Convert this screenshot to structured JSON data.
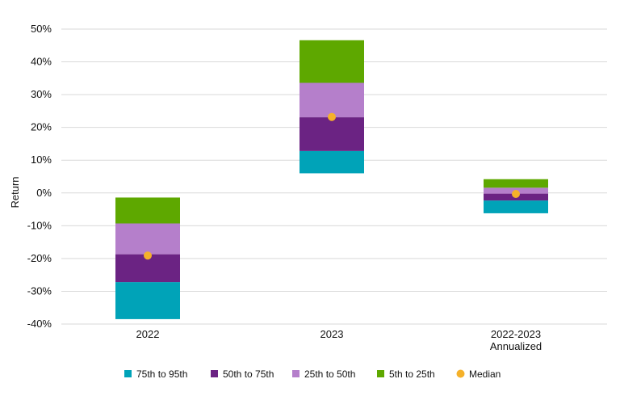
{
  "chart_data": {
    "type": "bar",
    "subtype": "floating-stacked-range",
    "ylabel": "Return",
    "ylim": [
      -40,
      50
    ],
    "y_ticks": [
      50,
      40,
      30,
      20,
      10,
      0,
      -10,
      -20,
      -30,
      -40
    ],
    "y_tick_labels": [
      "50%",
      "40%",
      "30%",
      "20%",
      "10%",
      "0%",
      "-10%",
      "-20%",
      "-30%",
      "-40%"
    ],
    "grid": true,
    "legend_position": "bottom",
    "categories": [
      {
        "label": [
          "2022"
        ]
      },
      {
        "label": [
          "2023"
        ]
      },
      {
        "label": [
          "2022-2023",
          "Annualized"
        ]
      }
    ],
    "series": [
      {
        "name": "75th to 95th",
        "color": "#00a3b8",
        "ranges": [
          [
            -38.5,
            -27.2
          ],
          [
            6.0,
            12.8
          ],
          [
            -6.2,
            -2.3
          ]
        ]
      },
      {
        "name": "50th to 75th",
        "color": "#6b2383",
        "ranges": [
          [
            -27.2,
            -18.7
          ],
          [
            12.8,
            23.1
          ],
          [
            -2.3,
            -0.2
          ]
        ]
      },
      {
        "name": "25th to 50th",
        "color": "#b57fcb",
        "ranges": [
          [
            -18.7,
            -9.3
          ],
          [
            23.1,
            33.6
          ],
          [
            -0.2,
            1.6
          ]
        ]
      },
      {
        "name": "5th to 25th",
        "color": "#5ea800",
        "ranges": [
          [
            -9.3,
            -1.4
          ],
          [
            33.6,
            46.6
          ],
          [
            1.6,
            4.2
          ]
        ]
      }
    ],
    "median": {
      "name": "Median",
      "color": "#f5b12a",
      "values": [
        -19.1,
        23.2,
        -0.3
      ]
    }
  }
}
